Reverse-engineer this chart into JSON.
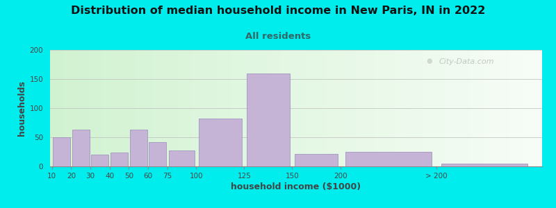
{
  "title": "Distribution of median household income in New Paris, IN in 2022",
  "subtitle": "All residents",
  "xlabel": "household income ($1000)",
  "ylabel": "households",
  "title_fontsize": 11.5,
  "subtitle_fontsize": 9.5,
  "axis_label_fontsize": 9,
  "tick_fontsize": 7.5,
  "background_outer": "#00EDED",
  "bar_color": "#C5B4D5",
  "bar_edge_color": "#9988BB",
  "ylim": [
    0,
    200
  ],
  "yticks": [
    0,
    50,
    100,
    150,
    200
  ],
  "bar_labels": [
    "10",
    "20",
    "30",
    "40",
    "50",
    "60",
    "75",
    "100",
    "125",
    "150",
    "200",
    "> 200"
  ],
  "bar_heights": [
    50,
    63,
    20,
    24,
    63,
    42,
    27,
    82,
    160,
    22,
    25,
    5
  ],
  "bar_widths": [
    10,
    10,
    10,
    10,
    10,
    10,
    15,
    25,
    25,
    25,
    50,
    50
  ],
  "bar_lefts": [
    0,
    10,
    20,
    30,
    40,
    50,
    60,
    75,
    100,
    125,
    150,
    200
  ],
  "xlim_min": -1,
  "xlim_max": 255,
  "watermark_text": "City-Data.com",
  "grid_color": "#bbbbbb",
  "subtitle_color": "#336666",
  "title_color": "#111111",
  "label_color": "#444444"
}
